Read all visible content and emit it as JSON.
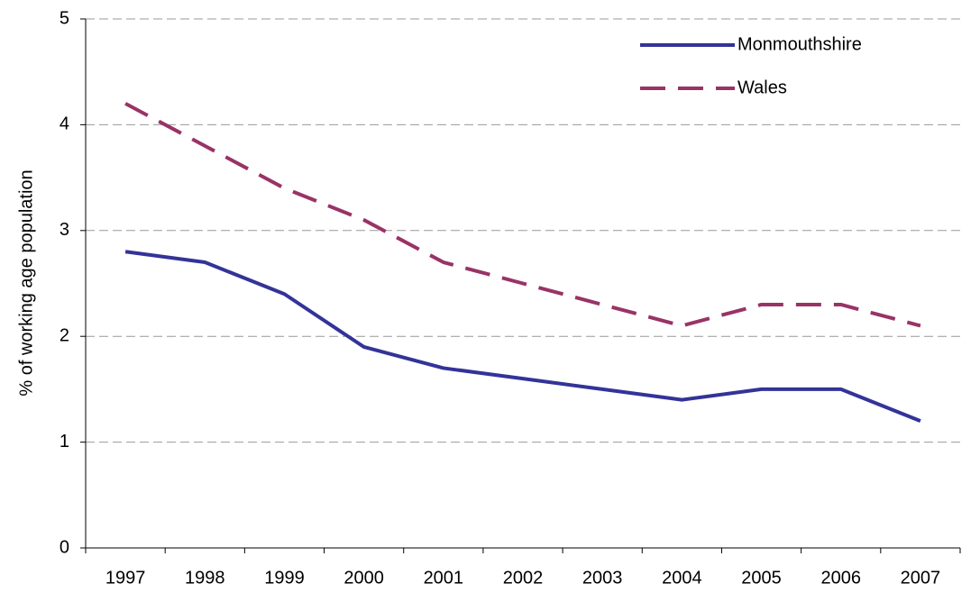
{
  "chart_data": {
    "type": "line",
    "y_label": "% of working age population",
    "categories": [
      "1997",
      "1998",
      "1999",
      "2000",
      "2001",
      "2002",
      "2003",
      "2004",
      "2005",
      "2006",
      "2007"
    ],
    "series": [
      {
        "name": "Monmouthshire",
        "color": "#333399",
        "dash": false,
        "values": [
          2.8,
          2.7,
          2.4,
          1.9,
          1.7,
          1.6,
          1.5,
          1.4,
          1.5,
          1.5,
          1.2
        ]
      },
      {
        "name": "Wales",
        "color": "#993366",
        "dash": true,
        "values": [
          4.2,
          3.8,
          3.4,
          3.1,
          2.7,
          2.5,
          2.3,
          2.1,
          2.3,
          2.3,
          2.1
        ]
      }
    ],
    "ylim": [
      0,
      5
    ],
    "yticks": [
      0,
      1,
      2,
      3,
      4,
      5
    ],
    "grid": true,
    "legend": "top-right"
  }
}
